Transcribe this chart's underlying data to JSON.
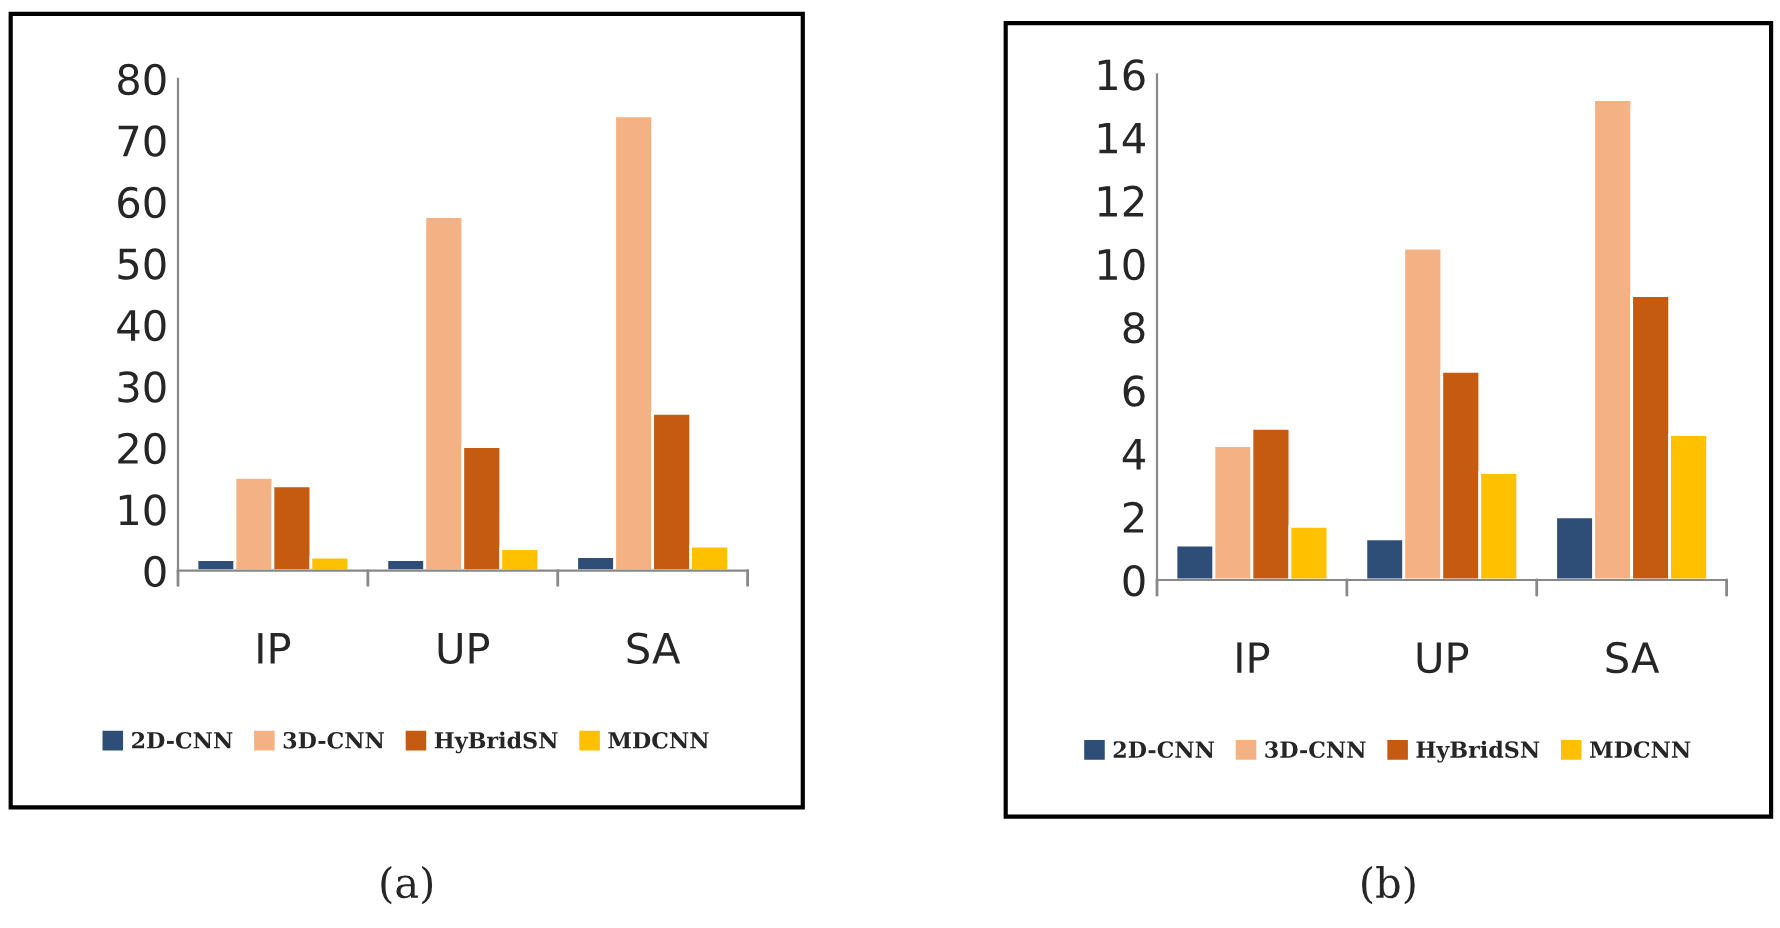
{
  "chart_data": [
    {
      "type": "bar",
      "categories": [
        "IP",
        "UP",
        "SA"
      ],
      "ylim": [
        0,
        80
      ],
      "yticks": [
        0,
        10,
        20,
        30,
        40,
        50,
        60,
        70,
        80
      ],
      "grid": false,
      "legend": "bottom",
      "annotations": [
        "(a)"
      ],
      "series": [
        {
          "name": "2D-CNN",
          "color": "#2e4e78",
          "values": [
            1.8,
            1.8,
            2.3
          ]
        },
        {
          "name": "3D-CNN",
          "color": "#f4b183",
          "values": [
            15.2,
            57.6,
            74
          ]
        },
        {
          "name": "HyBridSN",
          "color": "#c55a11",
          "values": [
            13.8,
            20.2,
            25.6
          ]
        },
        {
          "name": "MDCNN",
          "color": "#ffc000",
          "values": [
            2.2,
            3.6,
            4
          ]
        }
      ]
    },
    {
      "type": "bar",
      "categories": [
        "IP",
        "UP",
        "SA"
      ],
      "ylim": [
        0,
        16
      ],
      "yticks": [
        0,
        2,
        4,
        6,
        8,
        10,
        12,
        14,
        16
      ],
      "grid": false,
      "legend": "bottom",
      "annotations": [
        "(b)"
      ],
      "series": [
        {
          "name": "2D-CNN",
          "color": "#2e4e78",
          "values": [
            1.1,
            1.3,
            2.0
          ]
        },
        {
          "name": "3D-CNN",
          "color": "#f4b183",
          "values": [
            4.25,
            10.5,
            15.2
          ]
        },
        {
          "name": "HyBridSN",
          "color": "#c55a11",
          "values": [
            4.8,
            6.6,
            9.0
          ]
        },
        {
          "name": "MDCNN",
          "color": "#ffc000",
          "values": [
            1.7,
            3.4,
            4.6
          ]
        }
      ]
    }
  ]
}
